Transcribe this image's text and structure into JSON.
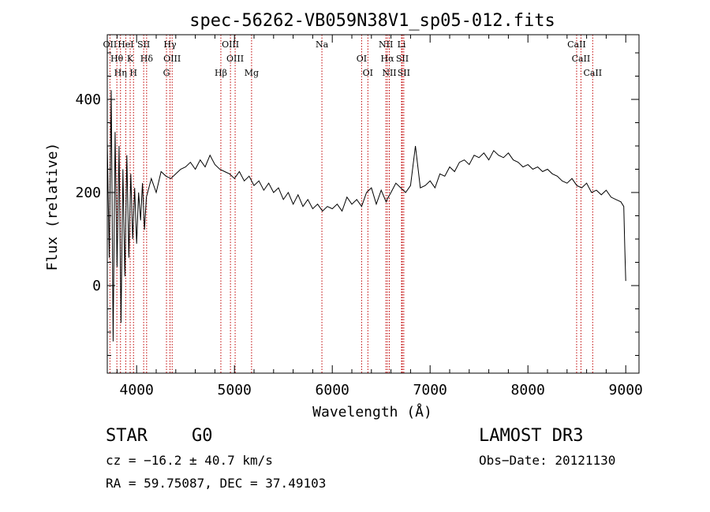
{
  "chart_data": {
    "type": "line",
    "title": "spec-56262-VB059N38V1_sp05-012.fits",
    "xlabel": "Wavelength (Å)",
    "ylabel": "Flux (relative)",
    "xlim": [
      3700,
      9100
    ],
    "ylim": [
      -185,
      540
    ],
    "xticks": [
      4000,
      5000,
      6000,
      7000,
      8000,
      9000
    ],
    "yticks": [
      0,
      200,
      400
    ],
    "series": [
      {
        "name": "flux",
        "x": [
          3700,
          3720,
          3740,
          3760,
          3780,
          3800,
          3820,
          3840,
          3860,
          3880,
          3900,
          3920,
          3940,
          3960,
          3980,
          4000,
          4020,
          4040,
          4060,
          4080,
          4100,
          4150,
          4200,
          4250,
          4300,
          4350,
          4400,
          4450,
          4500,
          4550,
          4600,
          4650,
          4700,
          4750,
          4800,
          4850,
          4900,
          4950,
          5000,
          5050,
          5100,
          5150,
          5200,
          5250,
          5300,
          5350,
          5400,
          5450,
          5500,
          5550,
          5600,
          5650,
          5700,
          5750,
          5800,
          5850,
          5900,
          5950,
          6000,
          6050,
          6100,
          6150,
          6200,
          6250,
          6300,
          6350,
          6400,
          6450,
          6500,
          6550,
          6560,
          6600,
          6650,
          6700,
          6750,
          6800,
          6850,
          6900,
          6950,
          7000,
          7050,
          7100,
          7150,
          7200,
          7250,
          7300,
          7350,
          7400,
          7450,
          7500,
          7550,
          7600,
          7650,
          7700,
          7750,
          7800,
          7850,
          7900,
          7950,
          8000,
          8050,
          8100,
          8150,
          8200,
          8250,
          8300,
          8350,
          8400,
          8450,
          8500,
          8550,
          8600,
          8650,
          8700,
          8750,
          8800,
          8850,
          8900,
          8950,
          8980,
          8990,
          9000
        ],
        "values": [
          310,
          60,
          420,
          -120,
          330,
          40,
          300,
          -80,
          250,
          20,
          280,
          60,
          240,
          100,
          210,
          90,
          200,
          140,
          220,
          120,
          190,
          230,
          200,
          245,
          235,
          230,
          240,
          250,
          255,
          265,
          250,
          270,
          255,
          280,
          260,
          250,
          245,
          240,
          230,
          245,
          225,
          235,
          215,
          225,
          205,
          220,
          200,
          210,
          185,
          200,
          175,
          195,
          170,
          185,
          165,
          175,
          160,
          170,
          165,
          175,
          160,
          190,
          175,
          185,
          170,
          200,
          210,
          175,
          205,
          180,
          185,
          200,
          220,
          210,
          200,
          215,
          300,
          210,
          215,
          225,
          210,
          240,
          235,
          255,
          245,
          265,
          270,
          260,
          280,
          275,
          285,
          270,
          290,
          280,
          275,
          285,
          270,
          265,
          255,
          260,
          250,
          255,
          245,
          250,
          240,
          235,
          225,
          220,
          230,
          215,
          210,
          220,
          200,
          205,
          195,
          205,
          190,
          185,
          180,
          170,
          80,
          10
        ]
      }
    ],
    "spectral_lines": [
      {
        "label": "OII",
        "wavelength": 3727
      },
      {
        "label": "Hθ",
        "wavelength": 3798
      },
      {
        "label": "Hη",
        "wavelength": 3835
      },
      {
        "label": "HeI",
        "wavelength": 3889
      },
      {
        "label": "K",
        "wavelength": 3934
      },
      {
        "label": "H",
        "wavelength": 3968
      },
      {
        "label": "SII",
        "wavelength": 4072
      },
      {
        "label": "Hδ",
        "wavelength": 4102
      },
      {
        "label": "G",
        "wavelength": 4305
      },
      {
        "label": "Hγ",
        "wavelength": 4341
      },
      {
        "label": "OIII",
        "wavelength": 4363
      },
      {
        "label": "Hβ",
        "wavelength": 4861
      },
      {
        "label": "OIII",
        "wavelength": 4959
      },
      {
        "label": "OIII",
        "wavelength": 5007
      },
      {
        "label": "Mg",
        "wavelength": 5175
      },
      {
        "label": "Na",
        "wavelength": 5894
      },
      {
        "label": "OI",
        "wavelength": 6300
      },
      {
        "label": "OI",
        "wavelength": 6364
      },
      {
        "label": "NII",
        "wavelength": 6548
      },
      {
        "label": "Hα",
        "wavelength": 6563
      },
      {
        "label": "NII",
        "wavelength": 6583
      },
      {
        "label": "Li",
        "wavelength": 6708
      },
      {
        "label": "SII",
        "wavelength": 6716
      },
      {
        "label": "SII",
        "wavelength": 6731
      },
      {
        "label": "CaII",
        "wavelength": 8498
      },
      {
        "label": "CaII",
        "wavelength": 8542
      },
      {
        "label": "CaII",
        "wavelength": 8662
      }
    ]
  },
  "info": {
    "object_class": "STAR",
    "subclass": "G0",
    "survey": "LAMOST DR3",
    "redshift": "cz = −16.2 ± 40.7 km/s",
    "obs_date": "Obs−Date: 20121130",
    "coords": "RA =  59.75087, DEC =  37.49103"
  },
  "colors": {
    "line_marker": "#c00000",
    "spectrum": "#000000"
  }
}
